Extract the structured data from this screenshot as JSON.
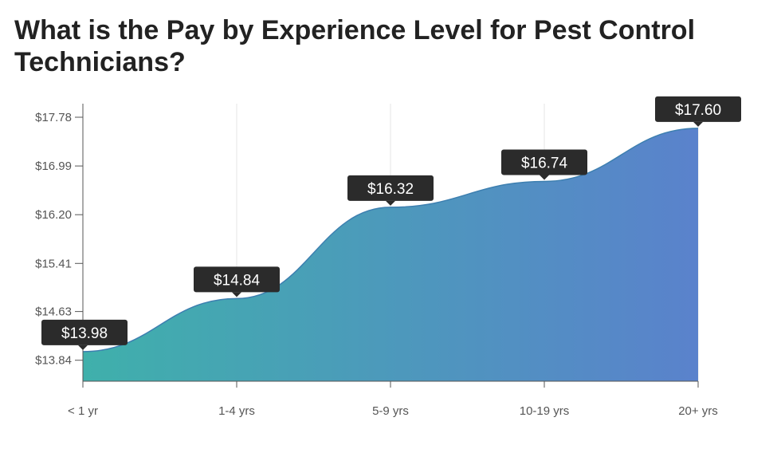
{
  "title": "What is the Pay by Experience Level for Pest Control Technicians?",
  "chart_data": {
    "type": "area",
    "title": "What is the Pay by Experience Level for Pest Control Technicians?",
    "categories": [
      "< 1 yr",
      "1-4 yrs",
      "5-9 yrs",
      "10-19 yrs",
      "20+ yrs"
    ],
    "values": [
      13.98,
      14.84,
      16.32,
      16.74,
      17.6
    ],
    "value_labels": [
      "$13.98",
      "$14.84",
      "$16.32",
      "$16.74",
      "$17.60"
    ],
    "y_ticks": [
      13.84,
      14.63,
      15.41,
      16.2,
      16.99,
      17.78
    ],
    "y_tick_labels": [
      "$13.84",
      "$14.63",
      "$15.41",
      "$16.20",
      "$16.99",
      "$17.78"
    ],
    "ylim": [
      13.5,
      18.0
    ],
    "grid": "vertical",
    "colors": {
      "gradient_start": "#3fb0ab",
      "gradient_end": "#5a82cc",
      "line": "#3d7fb0",
      "label_bg": "#2b2b2b",
      "axis": "#555555"
    }
  }
}
